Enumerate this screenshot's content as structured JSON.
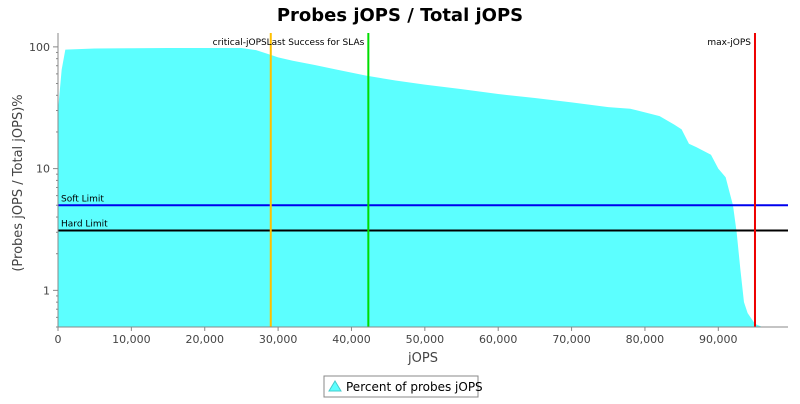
{
  "chart_data": {
    "type": "area",
    "title": "Probes jOPS / Total jOPS",
    "xlabel": "jOPS",
    "ylabel": "(Probes jOPS / Total jOPS)%",
    "y_scale": "log",
    "xlim": [
      0,
      99500
    ],
    "ylim": [
      0.5,
      130
    ],
    "x_ticks": [
      0,
      10000,
      20000,
      30000,
      40000,
      50000,
      60000,
      70000,
      80000,
      90000
    ],
    "x_tick_labels": [
      "0",
      "10,000",
      "20,000",
      "30,000",
      "40,000",
      "50,000",
      "60,000",
      "70,000",
      "80,000",
      "90,000"
    ],
    "y_ticks": [
      1,
      10,
      100
    ],
    "y_tick_labels": [
      "1",
      "10",
      "100"
    ],
    "grid": false,
    "legend_position": "bottom",
    "series": [
      {
        "name": "Percent of probes jOPS",
        "color": "#5cffff",
        "x": [
          0,
          500,
          1000,
          5000,
          10000,
          15000,
          20000,
          25000,
          27000,
          28000,
          29000,
          30000,
          32000,
          35000,
          38000,
          42000,
          46000,
          50000,
          55000,
          60000,
          65000,
          70000,
          75000,
          78000,
          80000,
          82000,
          84000,
          85000,
          86000,
          87000,
          89000,
          90000,
          91000,
          91500,
          92000,
          92500,
          93000,
          93500,
          94000,
          95000,
          96000,
          99500
        ],
        "values": [
          30,
          65,
          95,
          97,
          97.5,
          98,
          98,
          98,
          94,
          90,
          86,
          82,
          77,
          71,
          65,
          58,
          53,
          49,
          45,
          41,
          38,
          35,
          32,
          31,
          29,
          27,
          23,
          21,
          16,
          15,
          13,
          10,
          8.5,
          6.5,
          5.0,
          3.0,
          1.5,
          0.8,
          0.65,
          0.53,
          0.5,
          0.5
        ]
      }
    ],
    "vertical_markers": [
      {
        "label": "critical-jOPS",
        "x": 29000,
        "color": "#ffc000"
      },
      {
        "label": "Last Success for SLAs",
        "x": 42300,
        "color": "#00dd00"
      },
      {
        "label": "max-jOPS",
        "x": 95000,
        "color": "#ee0000"
      }
    ],
    "horizontal_markers": [
      {
        "label": "Soft Limit",
        "y": 5.0,
        "color": "#0000ee"
      },
      {
        "label": "Hard Limit",
        "y": 3.1,
        "color": "#000000"
      }
    ]
  }
}
